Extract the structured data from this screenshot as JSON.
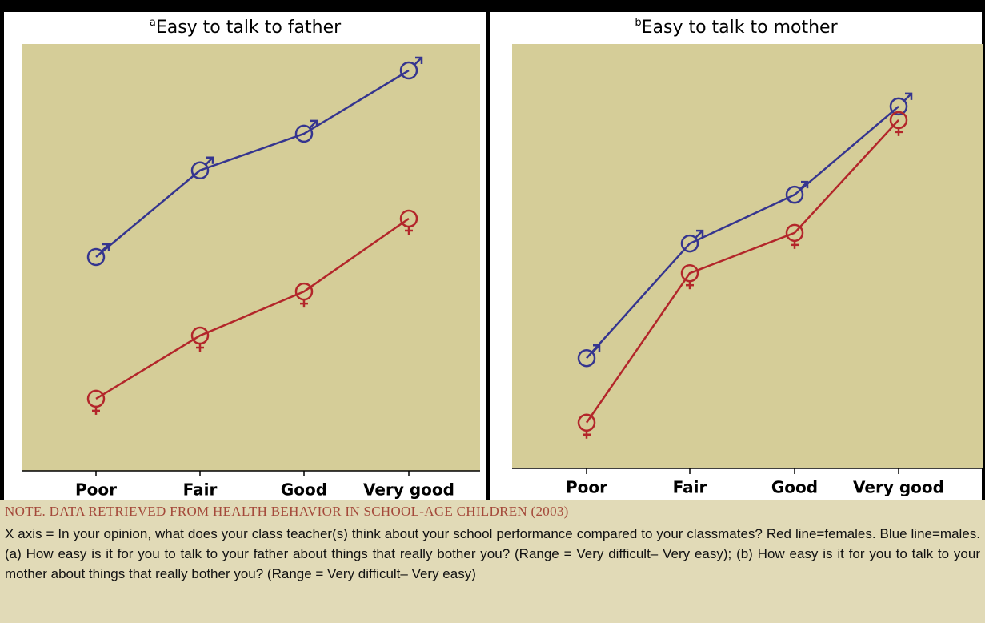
{
  "chart_data": [
    {
      "type": "line",
      "title_marker": "a",
      "title": "Easy to talk to father",
      "categories": [
        "Poor",
        "Fair",
        "Good",
        "Very good"
      ],
      "series": [
        {
          "color": "#35358f",
          "symbol": "male",
          "values": [
            50.1,
            70.4,
            79.0,
            93.8
          ]
        },
        {
          "color": "#b3262a",
          "symbol": "female",
          "values": [
            16.9,
            31.7,
            42.0,
            59.1
          ]
        }
      ],
      "ylim": [
        0,
        100
      ]
    },
    {
      "type": "line",
      "title_marker": "b",
      "title": "Easy to talk to mother",
      "categories": [
        "Poor",
        "Fair",
        "Good",
        "Very good"
      ],
      "series": [
        {
          "color": "#35358f",
          "symbol": "male",
          "values": [
            26.0,
            53.0,
            64.5,
            85.3
          ]
        },
        {
          "color": "#b3262a",
          "symbol": "female",
          "values": [
            10.8,
            46.0,
            55.5,
            82.1
          ]
        }
      ],
      "ylim": [
        0,
        100
      ]
    }
  ],
  "note": {
    "heading": "NOTE. DATA RETRIEVED FROM HEALTH BEHAVIOR IN SCHOOL-AGE CHILDREN (2003)",
    "text": "X axis = In your opinion, what does your class teacher(s) think about your school performance compared to your classmates? Red line=females. Blue line=males. (a) How easy is it for you to talk to your father about things that really bother you? (Range = Very difficult– Very easy); (b) How easy is it for you to talk to your mother about things that really bother you? (Range = Very difficult– Very easy)"
  }
}
